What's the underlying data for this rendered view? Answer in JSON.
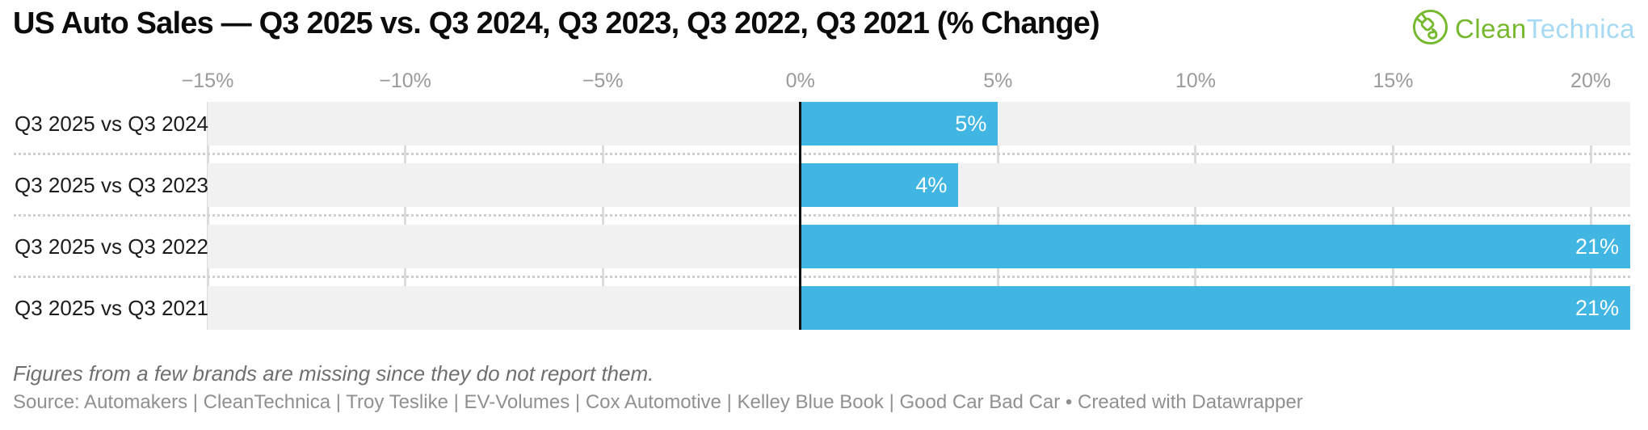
{
  "title": "US Auto Sales — Q3 2025 vs. Q3 2024, Q3 2023, Q3 2022, Q3 2021 (% Change)",
  "logo": {
    "icon": "cleantechnica-plug-icon",
    "text_green": "Clean",
    "text_blue": "Technica",
    "green_color": "#76b82e",
    "blue_color": "#a5d9f4"
  },
  "chart_data": {
    "type": "bar",
    "orientation": "horizontal",
    "title": "US Auto Sales — Q3 2025 vs. Q3 2024, Q3 2023, Q3 2022, Q3 2021 (% Change)",
    "categories": [
      "Q3 2025 vs Q3 2024",
      "Q3 2025 vs Q3 2023",
      "Q3 2025 vs Q3 2022",
      "Q3 2025 vs Q3 2021"
    ],
    "values": [
      5,
      4,
      21,
      21
    ],
    "value_labels": [
      "5%",
      "4%",
      "21%",
      "21%"
    ],
    "unit": "%",
    "xlim": [
      -15,
      21
    ],
    "ticks": [
      -15,
      -10,
      -5,
      0,
      5,
      10,
      15,
      20
    ],
    "tick_labels": [
      "−15%",
      "−10%",
      "−5%",
      "0%",
      "5%",
      "10%",
      "15%",
      "20%"
    ],
    "grid": true,
    "zero_line": true,
    "legend": "none",
    "bar_color": "#41b6e2",
    "track_color": "#f1f1f1",
    "grid_color": "#dcdcdc",
    "zero_line_color": "#111111",
    "value_label_color": "#ffffff",
    "tick_label_color": "#9a9a9a"
  },
  "footnote": "Figures from a few brands are missing since they do not report them.",
  "source": "Source: Automakers | CleanTechnica | Troy Teslike | EV-Volumes | Cox Automotive | Kelley Blue Book | Good Car Bad Car • Created with Datawrapper"
}
